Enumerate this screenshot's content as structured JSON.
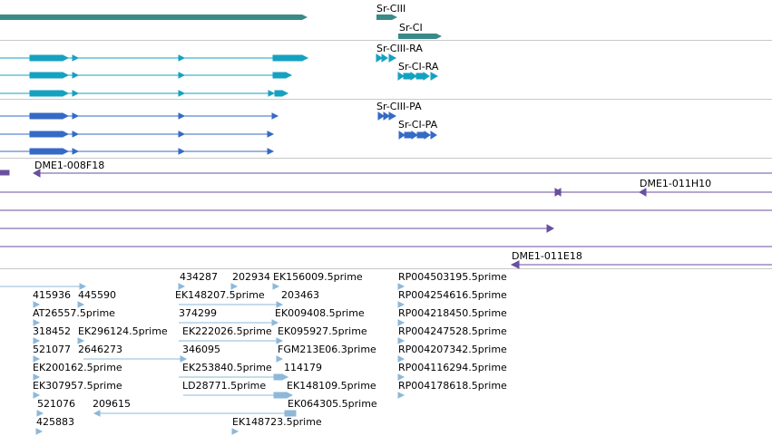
{
  "colors": {
    "gene": "#3a8a87",
    "transcript_ra": "#15a2c0",
    "transcript_pa": "#356ac6",
    "clone": "#6a4f9e",
    "est": "#8eb8d8",
    "divider": "#c8c8c8"
  },
  "tracks": {
    "gene": {
      "labels": [
        "Sr-CIII",
        "Sr-CI"
      ]
    },
    "mrna": {
      "labels": [
        "Sr-CIII-RA",
        "Sr-CI-RA"
      ]
    },
    "cds": {
      "labels": [
        "Sr-CIII-PA",
        "Sr-CI-PA"
      ]
    },
    "clones": {
      "labels": [
        "DME1-008F18",
        "DME1-011H10",
        "DME1-011E18"
      ]
    },
    "ests": {
      "labels": [
        "434287",
        "202934",
        "EK156009.5prime",
        "RP004503195.5prime",
        "415936",
        "445590",
        "EK148207.5prime",
        "203463",
        "RP004254616.5prime",
        "AT26557.5prime",
        "374299",
        "EK009408.5prime",
        "RP004218450.5prime",
        "318452",
        "EK296124.5prime",
        "EK222026.5prime",
        "EK095927.5prime",
        "RP004247528.5prime",
        "521077",
        "2646273",
        "346095",
        "FGM213E06.3prime",
        "RP004207342.5prime",
        "EK200162.5prime",
        "EK253840.5prime",
        "114179",
        "RP004116294.5prime",
        "EK307957.5prime",
        "LD28771.5prime",
        "EK148109.5prime",
        "RP004178618.5prime",
        "521076",
        "209615",
        "EK064305.5prime",
        "425883",
        "EK148723.5prime"
      ]
    }
  }
}
